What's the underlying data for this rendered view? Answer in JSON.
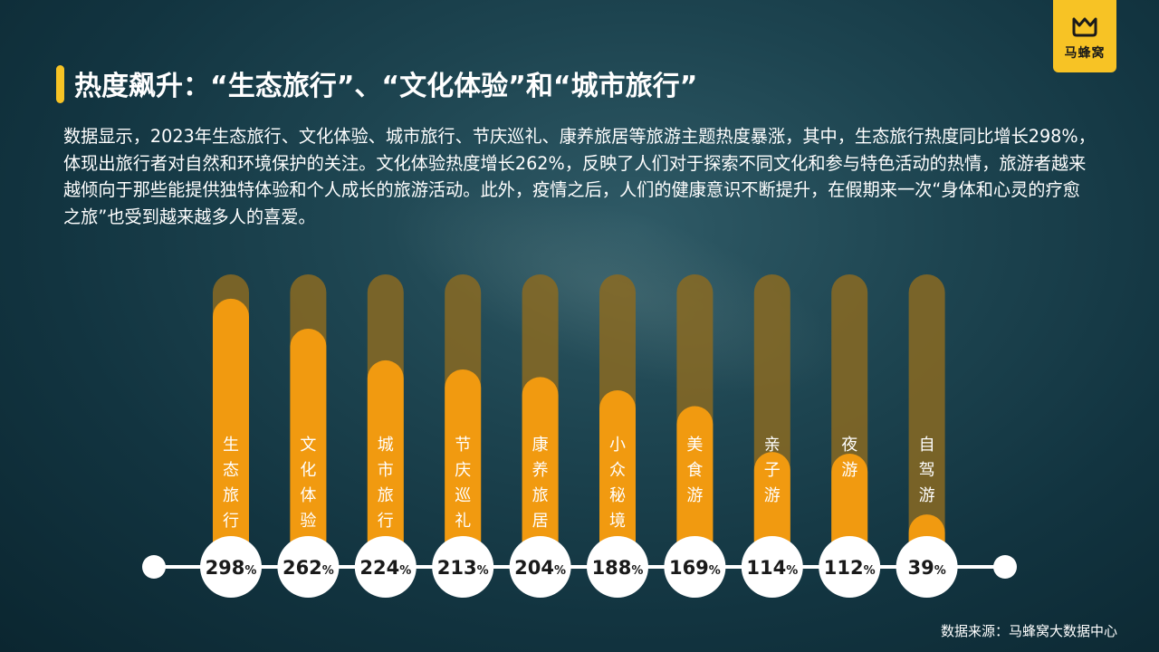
{
  "brand": {
    "name": "马蜂窝",
    "color": "#f7c325"
  },
  "header": {
    "title": "热度飙升：“生态旅行”、“文化体验”和“城市旅行”"
  },
  "description": "数据显示，2023年生态旅行、文化体验、城市旅行、节庆巡礼、康养旅居等旅游主题热度暴涨，其中，生态旅行热度同比增长298%，体现出旅行者对自然和环境保护的关注。文化体验热度增长262%，反映了人们对于探索不同文化和参与特色活动的热情，旅游者越来越倾向于那些能提供独特体验和个人成长的旅游活动。此外，疫情之后，人们的健康意识不断提升，在假期来一次“身体和心灵的疗愈之旅”也受到越来越多人的喜爱。",
  "footer": {
    "source": "数据来源：马蜂窝大数据中心"
  },
  "colors": {
    "bar": "#f19a10",
    "track": "#8a6a22",
    "circle": "#ffffff",
    "line": "#ffffff"
  },
  "chart_data": {
    "type": "bar",
    "unit": "%",
    "ylim": [
      0,
      300
    ],
    "categories": [
      "生态旅行",
      "文化体验",
      "城市旅行",
      "节庆巡礼",
      "康养旅居",
      "小众秘境",
      "美食游",
      "亲子游",
      "夜游",
      "自驾游"
    ],
    "values": [
      298,
      262,
      224,
      213,
      204,
      188,
      169,
      114,
      112,
      39
    ]
  }
}
